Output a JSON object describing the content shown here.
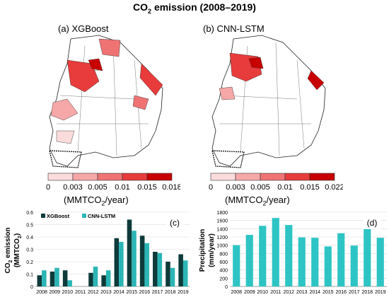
{
  "title": {
    "main": "CO",
    "sub": "2",
    "rest": " emission (2008–2019)"
  },
  "maps": [
    {
      "label": "(a) XGBoost",
      "legend_ticks": [
        "0",
        "0.003",
        "0.005",
        "0.01",
        "0.015",
        "0.018"
      ],
      "unit": {
        "pre": "(MMTCO",
        "sub": "2",
        "post": "/year)"
      },
      "colors": [
        "#fbdcdc",
        "#f6a8a8",
        "#ef7373",
        "#e83b3b",
        "#c80000"
      ]
    },
    {
      "label": "(b) CNN-LSTM",
      "legend_ticks": [
        "0",
        "0.003",
        "0.005",
        "0.01",
        "0.015",
        "0.022"
      ],
      "unit": {
        "pre": "(MMTCO",
        "sub": "2",
        "post": "/year)"
      },
      "colors": [
        "#fbdcdc",
        "#f6a8a8",
        "#ef7373",
        "#e83b3b",
        "#c80000"
      ]
    }
  ],
  "chart_data": [
    {
      "type": "bar",
      "panel_label": "(c)",
      "categories": [
        "2008",
        "2009",
        "2010",
        "2011",
        "2012",
        "2013",
        "2014",
        "2015",
        "2016",
        "2017",
        "2018",
        "2019"
      ],
      "series": [
        {
          "name": "XGBoost",
          "color": "#0e3a3a",
          "values": [
            0.09,
            0.12,
            0.13,
            0.0,
            0.11,
            0.09,
            0.39,
            0.54,
            0.41,
            0.28,
            0.2,
            0.26
          ]
        },
        {
          "name": "CNN-LSTM",
          "color": "#2bb5b5",
          "values": [
            0.13,
            0.15,
            0.05,
            0.0,
            0.16,
            0.13,
            0.36,
            0.45,
            0.35,
            0.27,
            0.15,
            0.21
          ]
        }
      ],
      "ylabel": {
        "pre": "CO",
        "sub": "2",
        "post": " emission",
        "line2_pre": "(MMTCO",
        "line2_sub": "2",
        "line2_post": ")"
      },
      "ylim": [
        0,
        0.6
      ],
      "yticks": [
        "0",
        "0.1",
        "0.2",
        "0.3",
        "0.4",
        "0.5",
        "0.6"
      ],
      "grid": true,
      "legend": "top-left"
    },
    {
      "type": "bar",
      "panel_label": "(d)",
      "categories": [
        "2008",
        "2009",
        "2010",
        "2011",
        "2012",
        "2013",
        "2014",
        "2015",
        "2016",
        "2017",
        "2018",
        "2019"
      ],
      "series": [
        {
          "color": "#2ec4c4",
          "values": [
            1000,
            1250,
            1470,
            1660,
            1490,
            1190,
            1180,
            970,
            1290,
            990,
            1440,
            1180
          ]
        }
      ],
      "ylabel": {
        "line1": "Precipitation",
        "line2": "(mm/year)"
      },
      "ylim": [
        0,
        1800
      ],
      "yticks": [
        "0",
        "200",
        "400",
        "600",
        "800",
        "1000",
        "1200",
        "1400",
        "1600",
        "1800"
      ],
      "grid": true
    }
  ]
}
